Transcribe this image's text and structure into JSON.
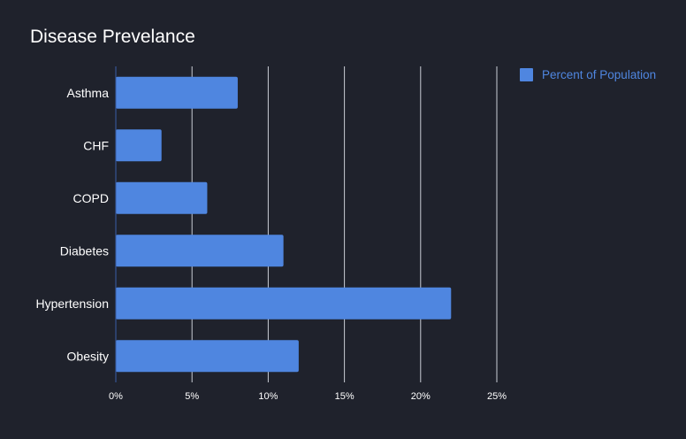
{
  "chart_data": {
    "type": "bar",
    "orientation": "horizontal",
    "title": "Disease Prevelance",
    "categories": [
      "Asthma",
      "CHF",
      "COPD",
      "Diabetes",
      "Hypertension",
      "Obesity"
    ],
    "series": [
      {
        "name": "Percent of Population",
        "values": [
          8,
          3,
          6,
          11,
          22,
          12
        ],
        "color": "#4f86e0"
      }
    ],
    "xlim": [
      0,
      25
    ],
    "x_ticks": [
      0,
      5,
      10,
      15,
      20,
      25
    ],
    "x_tick_labels": [
      "0%",
      "5%",
      "10%",
      "15%",
      "20%",
      "25%"
    ],
    "grid": true,
    "legend_position": "top-right",
    "colors": {
      "background": "#1f222c",
      "text": "#ffffff",
      "gridline": "#c9cdd6",
      "axis": "#3a5fa8",
      "legend_text": "#4f86e0"
    }
  }
}
